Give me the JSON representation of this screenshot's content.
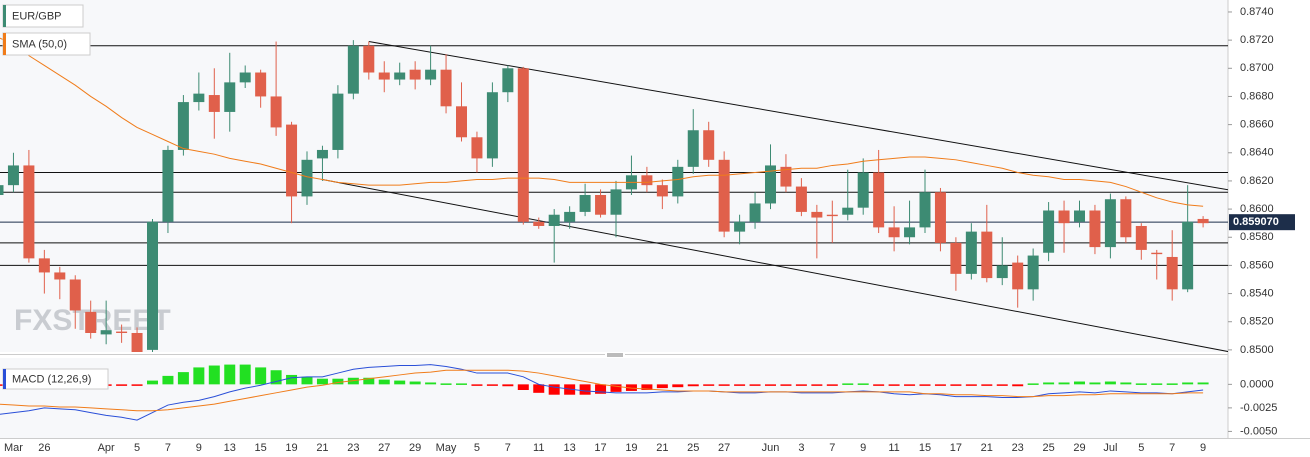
{
  "chart_data": {
    "type": "candlestick",
    "name": "EUR/GBP",
    "up_color": "#3d8b73",
    "down_color": "#e0604b",
    "watermark": "FXSTREET",
    "categories": [
      null,
      "Mar",
      null,
      "26",
      null,
      null,
      null,
      "Apr",
      null,
      "5",
      null,
      "7",
      null,
      "9",
      null,
      "13",
      null,
      "15",
      null,
      "19",
      null,
      "21",
      null,
      "23",
      null,
      "27",
      null,
      "29",
      null,
      "May",
      null,
      "5",
      null,
      "7",
      null,
      "11",
      null,
      "13",
      null,
      "17",
      null,
      "19",
      null,
      "21",
      null,
      "25",
      null,
      "27",
      null,
      null,
      "Jun",
      null,
      "3",
      null,
      "7",
      null,
      "9",
      null,
      "11",
      null,
      "15",
      null,
      "17",
      null,
      "21",
      null,
      "23",
      null,
      "25",
      null,
      "29",
      null,
      "Jul",
      null,
      "5",
      null,
      "7",
      null,
      "9"
    ],
    "open": [
      0.861,
      0.8617,
      0.8631,
      0.8565,
      0.8555,
      0.855,
      0.8527,
      0.8511,
      0.8513,
      0.8512,
      0.85,
      0.8591,
      0.8642,
      0.8676,
      0.8681,
      0.8669,
      0.869,
      0.8697,
      0.868,
      0.866,
      0.8609,
      0.8636,
      0.8642,
      0.8682,
      0.8716,
      0.8697,
      0.8692,
      0.8699,
      0.8692,
      0.8699,
      0.8673,
      0.8651,
      0.8636,
      0.8683,
      0.87,
      0.8591,
      0.8588,
      0.8591,
      0.8598,
      0.861,
      0.8596,
      0.8614,
      0.8624,
      0.8617,
      0.8609,
      0.863,
      0.8656,
      0.8635,
      0.8584,
      0.8591,
      0.8604,
      0.863,
      0.8616,
      0.8598,
      0.8596,
      0.8596,
      0.8601,
      0.8626,
      0.8587,
      0.858,
      0.8587,
      0.8612,
      0.8576,
      0.8554,
      0.8584,
      0.8551,
      0.8562,
      0.8543,
      0.8569,
      0.8599,
      0.8591,
      0.8599,
      0.8573,
      0.8607,
      0.8588,
      0.8569,
      0.8566,
      0.8543,
      0.8593
    ],
    "close": [
      0.8617,
      0.8631,
      0.8565,
      0.8555,
      0.855,
      0.8528,
      0.8512,
      0.8514,
      0.8512,
      0.8498,
      0.8591,
      0.8642,
      0.8676,
      0.8682,
      0.8669,
      0.869,
      0.8697,
      0.868,
      0.8658,
      0.8609,
      0.8635,
      0.8642,
      0.8682,
      0.8716,
      0.8697,
      0.8692,
      0.8697,
      0.8692,
      0.8699,
      0.8673,
      0.8651,
      0.8636,
      0.8683,
      0.87,
      0.8591,
      0.8588,
      0.8596,
      0.8598,
      0.861,
      0.8596,
      0.8614,
      0.8624,
      0.8617,
      0.8609,
      0.863,
      0.8656,
      0.8635,
      0.8584,
      0.8591,
      0.8604,
      0.8631,
      0.8616,
      0.8598,
      0.8594,
      0.8595,
      0.8601,
      0.8626,
      0.8587,
      0.858,
      0.8587,
      0.8612,
      0.8576,
      0.8554,
      0.8584,
      0.8551,
      0.856,
      0.8543,
      0.8567,
      0.8599,
      0.859,
      0.8599,
      0.8573,
      0.8607,
      0.858,
      0.8571,
      0.8568,
      0.8543,
      0.8591,
      0.859
    ],
    "high": [
      0.8622,
      0.864,
      0.8642,
      0.8571,
      0.8559,
      0.8553,
      0.8535,
      0.8535,
      0.8518,
      0.8516,
      0.8593,
      0.8645,
      0.8681,
      0.8697,
      0.87,
      0.8711,
      0.8702,
      0.8699,
      0.8719,
      0.8662,
      0.8641,
      0.8645,
      0.8688,
      0.872,
      0.8719,
      0.8705,
      0.8704,
      0.8705,
      0.8716,
      0.871,
      0.869,
      0.8655,
      0.869,
      0.8702,
      0.8701,
      0.8594,
      0.86,
      0.8602,
      0.8618,
      0.8614,
      0.862,
      0.8638,
      0.863,
      0.8621,
      0.8635,
      0.8671,
      0.8662,
      0.8641,
      0.8596,
      0.8612,
      0.8646,
      0.8639,
      0.8622,
      0.8603,
      0.8606,
      0.8628,
      0.8636,
      0.8642,
      0.8602,
      0.8606,
      0.8628,
      0.8615,
      0.858,
      0.859,
      0.8603,
      0.858,
      0.8567,
      0.8572,
      0.8605,
      0.8606,
      0.8606,
      0.8603,
      0.8611,
      0.8609,
      0.859,
      0.8571,
      0.8585,
      0.8617,
      0.8595
    ],
    "low": [
      0.8605,
      0.8612,
      0.8562,
      0.854,
      0.8536,
      0.8515,
      0.8508,
      0.8504,
      0.8505,
      0.8496,
      0.8498,
      0.8583,
      0.8638,
      0.867,
      0.865,
      0.8655,
      0.8686,
      0.8672,
      0.8652,
      0.859,
      0.8603,
      0.862,
      0.8636,
      0.8678,
      0.8692,
      0.8683,
      0.8688,
      0.8685,
      0.8688,
      0.8668,
      0.8648,
      0.8626,
      0.863,
      0.8676,
      0.8589,
      0.8586,
      0.8562,
      0.8586,
      0.8595,
      0.8594,
      0.858,
      0.861,
      0.8612,
      0.86,
      0.8604,
      0.8625,
      0.863,
      0.858,
      0.8575,
      0.8586,
      0.86,
      0.8612,
      0.8595,
      0.8565,
      0.8576,
      0.8592,
      0.8596,
      0.8583,
      0.857,
      0.8575,
      0.8583,
      0.857,
      0.8542,
      0.855,
      0.8548,
      0.8546,
      0.853,
      0.8535,
      0.8563,
      0.8569,
      0.8587,
      0.8568,
      0.8565,
      0.8576,
      0.8564,
      0.855,
      0.8535,
      0.8541,
      0.8587
    ],
    "ylim": [
      0.84985,
      0.87485
    ],
    "yticks": [
      {
        "value": 0.874,
        "label": "0.8740"
      },
      {
        "value": 0.872,
        "label": "0.8720"
      },
      {
        "value": 0.87,
        "label": "0.8700"
      },
      {
        "value": 0.868,
        "label": "0.8680"
      },
      {
        "value": 0.866,
        "label": "0.8660"
      },
      {
        "value": 0.864,
        "label": "0.8640"
      },
      {
        "value": 0.862,
        "label": "0.8620"
      },
      {
        "value": 0.86,
        "label": "0.8600"
      },
      {
        "value": 0.858,
        "label": "0.8580"
      },
      {
        "value": 0.856,
        "label": "0.8560"
      },
      {
        "value": 0.854,
        "label": "0.8540"
      },
      {
        "value": 0.852,
        "label": "0.8520"
      },
      {
        "value": 0.85,
        "label": "0.8500"
      }
    ],
    "levels": [
      0.8716,
      0.8626,
      0.8612,
      0.8576,
      0.856
    ],
    "current_price": {
      "value": 0.85907,
      "label": "0.859070"
    },
    "trendlines": [
      {
        "x": [
          24,
          80
        ],
        "y": [
          0.8719,
          0.8613
        ]
      },
      {
        "x": [
          21,
          80
        ],
        "y": [
          0.8621,
          0.8498
        ]
      }
    ],
    "sma": {
      "name": "SMA (50,0)",
      "color": "#f07c1a",
      "values": [
        0.8722,
        0.8717,
        0.8709,
        0.8702,
        0.8695,
        0.8688,
        0.868,
        0.8673,
        0.8665,
        0.8658,
        0.8653,
        0.8648,
        0.8643,
        0.8641,
        0.8639,
        0.8636,
        0.8634,
        0.8632,
        0.8629,
        0.8626,
        0.8623,
        0.8621,
        0.8619,
        0.8618,
        0.8617,
        0.8617,
        0.8617,
        0.8618,
        0.8619,
        0.8619,
        0.862,
        0.8621,
        0.8621,
        0.8622,
        0.8622,
        0.8622,
        0.8621,
        0.8619,
        0.8619,
        0.8619,
        0.8619,
        0.8619,
        0.8619,
        0.862,
        0.8621,
        0.8623,
        0.8624,
        0.8624,
        0.8625,
        0.8626,
        0.8627,
        0.8628,
        0.8629,
        0.8629,
        0.8631,
        0.8632,
        0.8634,
        0.8635,
        0.8636,
        0.8637,
        0.8637,
        0.8636,
        0.8635,
        0.8633,
        0.8631,
        0.8629,
        0.8626,
        0.8624,
        0.8623,
        0.8621,
        0.8621,
        0.862,
        0.8619,
        0.8616,
        0.8612,
        0.8608,
        0.8605,
        0.8603,
        0.8602
      ]
    },
    "macd": {
      "name": "MACD (12,26,9)",
      "color": "#2a4fd8",
      "signal_color": "#f07c1a",
      "up_color": "#22e022",
      "down_color": "#ff0000",
      "ylim": [
        -0.0057,
        0.0028
      ],
      "yticks": [
        {
          "value": 0,
          "label": "0.0000"
        },
        {
          "value": -0.0025,
          "label": "-0.0025"
        },
        {
          "value": -0.005,
          "label": "-0.0050"
        }
      ],
      "histogram": [
        -0.0001,
        -0.0001,
        -0.0001,
        -0.0001,
        -0.0001,
        -0.0001,
        -0.0001,
        -0.0001,
        -0.0001,
        -0.0001,
        0.0004,
        0.0009,
        0.0013,
        0.0018,
        0.002,
        0.0021,
        0.0021,
        0.0018,
        0.0015,
        0.001,
        0.0008,
        0.0006,
        0.0006,
        0.0007,
        0.0007,
        0.0005,
        0.0004,
        0.0003,
        0.0002,
        0.0001,
        0.0001,
        -0.0001,
        -0.0001,
        -0.0002,
        -0.0006,
        -0.0009,
        -0.0011,
        -0.0011,
        -0.0011,
        -0.001,
        -0.0008,
        -0.0007,
        -0.0006,
        -0.0004,
        -0.0003,
        -0.0002,
        -0.0001,
        -0.0001,
        -0.0001,
        -0.0001,
        -0.0001,
        -0.0001,
        -0.0001,
        -0.0001,
        -0.0001,
        0.0001,
        0.0001,
        -0.0001,
        -0.0001,
        -0.0001,
        -0.0001,
        -0.0001,
        -0.0001,
        -0.0001,
        -0.0001,
        -0.0001,
        -0.0002,
        0.0001,
        0.0002,
        0.0002,
        0.0003,
        0.0002,
        0.0003,
        0.0002,
        0.0001,
        0.0001,
        0.0001,
        0.0002,
        0.0002
      ],
      "macd": [
        -0.0032,
        -0.003,
        -0.0028,
        -0.0025,
        -0.0026,
        -0.0027,
        -0.003,
        -0.0033,
        -0.0035,
        -0.0038,
        -0.003,
        -0.0022,
        -0.0019,
        -0.0017,
        -0.0013,
        -0.0008,
        -0.0004,
        -0.0001,
        0.0003,
        0.0007,
        0.0008,
        0.0008,
        0.0012,
        0.0016,
        0.0018,
        0.0019,
        0.002,
        0.002,
        0.0021,
        0.0019,
        0.0016,
        0.0012,
        0.0012,
        0.0012,
        0.0008,
        0,
        -0.0003,
        -0.0005,
        -0.0007,
        -0.0008,
        -0.0009,
        -0.0009,
        -0.0009,
        -0.0008,
        -0.0008,
        -0.0007,
        -0.0007,
        -0.0008,
        -0.0009,
        -0.0009,
        -0.0008,
        -0.0008,
        -0.0009,
        -0.0009,
        -0.0009,
        -0.0008,
        -0.0007,
        -0.0008,
        -0.001,
        -0.0011,
        -0.001,
        -0.0011,
        -0.0013,
        -0.0013,
        -0.0013,
        -0.0014,
        -0.0014,
        -0.0013,
        -0.001,
        -0.0009,
        -0.0008,
        -0.0009,
        -0.0007,
        -0.0008,
        -0.0009,
        -0.0009,
        -0.001,
        -0.0008,
        -0.0006
      ],
      "signal": [
        -0.0021,
        -0.0022,
        -0.0023,
        -0.0023,
        -0.0024,
        -0.0024,
        -0.0025,
        -0.0026,
        -0.0027,
        -0.0028,
        -0.0028,
        -0.0027,
        -0.0025,
        -0.0023,
        -0.0021,
        -0.0018,
        -0.0015,
        -0.0012,
        -0.0009,
        -0.0006,
        -0.0003,
        -0.0001,
        0.0002,
        0.0004,
        0.0006,
        0.0008,
        0.001,
        0.0012,
        0.0013,
        0.0015,
        0.0015,
        0.0015,
        0.0015,
        0.0015,
        0.0014,
        0.0012,
        0.0009,
        0.0006,
        0.0003,
        0,
        -0.0002,
        -0.0004,
        -0.0005,
        -0.0006,
        -0.0007,
        -0.0007,
        -0.0007,
        -0.0008,
        -0.0008,
        -0.0008,
        -0.0008,
        -0.0008,
        -0.0008,
        -0.0008,
        -0.0008,
        -0.0008,
        -0.0008,
        -0.0008,
        -0.0008,
        -0.0008,
        -0.001,
        -0.001,
        -0.0011,
        -0.0011,
        -0.0012,
        -0.0012,
        -0.0013,
        -0.0013,
        -0.0012,
        -0.0012,
        -0.0011,
        -0.0011,
        -0.001,
        -0.001,
        -0.001,
        -0.001,
        -0.001,
        -0.0009,
        -0.0009
      ]
    }
  }
}
